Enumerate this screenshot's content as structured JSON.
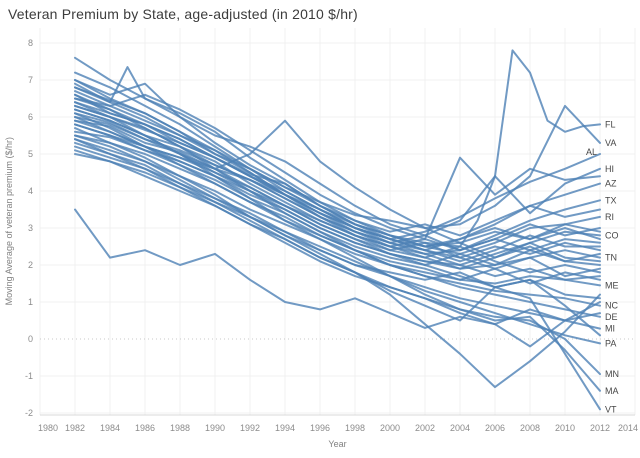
{
  "chart_data": {
    "type": "line",
    "title": "Veteran Premium by State, age-adjusted (in 2010 $/hr)",
    "xlabel": "Year",
    "ylabel": "Moving Average of veteran premium ($/hr)",
    "xlim": [
      1980,
      2014
    ],
    "ylim": [
      -2,
      8
    ],
    "x_ticks": [
      1980,
      1982,
      1984,
      1986,
      1988,
      1990,
      1992,
      1994,
      1996,
      1998,
      2000,
      2002,
      2004,
      2006,
      2008,
      2010,
      2012,
      2014
    ],
    "y_ticks": [
      8,
      7,
      6,
      5,
      4,
      3,
      2,
      1,
      0,
      -1,
      -2
    ],
    "grid": true,
    "zero_line_style": "dotted",
    "legend": "end-of-line state labels, right side",
    "line_opacity": 0.8,
    "colors": {
      "line": "#4d81b5",
      "grid": "#f0f0f0",
      "zero_line": "#c9c9c9",
      "axis_line": "#d9d9d9",
      "tick_label": "#8c8c8c",
      "state_label": "#474747",
      "title": "#3c3c3c",
      "axis_title": "#828282"
    },
    "x": [
      1982,
      1984,
      1986,
      1988,
      1990,
      1992,
      1994,
      1996,
      1998,
      2000,
      2002,
      2004,
      2006,
      2008,
      2010,
      2012
    ],
    "series": [
      {
        "label": "FL",
        "x": [
          1982,
          1984,
          1986,
          1988,
          1990,
          1992,
          1994,
          1996,
          1998,
          2000,
          2002,
          2004,
          2005,
          2006,
          2007,
          2008,
          2009,
          2010,
          2011,
          2012
        ],
        "y": [
          6.3,
          6.0,
          5.65,
          5.3,
          4.9,
          4.45,
          4.2,
          3.6,
          3.1,
          2.8,
          2.6,
          2.5,
          3.2,
          4.4,
          7.8,
          7.2,
          5.9,
          5.6,
          5.75,
          5.8
        ]
      },
      {
        "label": "VA",
        "y": [
          6.8,
          6.45,
          6.1,
          5.6,
          5.0,
          4.6,
          4.1,
          3.7,
          3.35,
          3.2,
          3.0,
          3.1,
          3.6,
          4.4,
          6.3,
          5.3
        ]
      },
      {
        "label": "AL",
        "label_offset": [
          -19,
          -2
        ],
        "y": [
          5.9,
          5.75,
          5.3,
          5.05,
          4.6,
          4.3,
          3.9,
          3.4,
          3.0,
          2.7,
          2.9,
          3.3,
          3.8,
          4.25,
          4.6,
          5.0
        ]
      },
      {
        "label": "HI",
        "y": [
          7.0,
          6.6,
          6.9,
          6.0,
          5.5,
          5.2,
          4.8,
          4.2,
          3.6,
          3.1,
          2.8,
          3.2,
          4.4,
          3.4,
          4.2,
          4.6
        ]
      },
      {
        "label": "AZ",
        "y": [
          6.2,
          5.9,
          5.5,
          5.2,
          4.7,
          4.3,
          3.8,
          3.3,
          2.9,
          2.6,
          2.4,
          2.7,
          3.1,
          3.6,
          3.9,
          4.2
        ]
      },
      {
        "label": "TX",
        "y": [
          5.6,
          5.45,
          5.1,
          4.8,
          4.4,
          4.0,
          3.6,
          3.2,
          2.8,
          2.5,
          2.3,
          2.4,
          2.8,
          3.2,
          3.5,
          3.75
        ]
      },
      {
        "label": "RI",
        "y": [
          6.5,
          6.2,
          5.8,
          5.4,
          4.9,
          4.4,
          3.9,
          3.5,
          3.1,
          2.8,
          2.5,
          2.3,
          2.6,
          3.0,
          3.1,
          3.3
        ]
      },
      {
        "label": "CO",
        "y": [
          5.8,
          5.5,
          5.2,
          4.8,
          4.4,
          3.9,
          3.5,
          3.0,
          2.6,
          2.3,
          2.1,
          2.0,
          2.3,
          2.6,
          2.9,
          2.8
        ]
      },
      {
        "label": "TN",
        "y": [
          6.1,
          5.85,
          5.4,
          5.0,
          4.5,
          4.0,
          3.5,
          3.0,
          2.6,
          2.3,
          2.1,
          1.9,
          2.0,
          2.2,
          2.4,
          2.2
        ]
      },
      {
        "label": "ME",
        "y": [
          5.4,
          5.1,
          4.8,
          4.4,
          4.0,
          3.5,
          3.1,
          2.7,
          2.3,
          2.0,
          1.8,
          1.6,
          1.5,
          1.7,
          1.6,
          1.45
        ]
      },
      {
        "label": "NC",
        "y": [
          6.0,
          5.6,
          5.2,
          4.7,
          4.2,
          3.7,
          3.2,
          2.8,
          2.4,
          2.0,
          1.7,
          1.5,
          1.3,
          1.2,
          1.1,
          0.9
        ]
      },
      {
        "label": "DE",
        "y": [
          6.6,
          6.2,
          5.7,
          5.2,
          4.6,
          4.0,
          3.4,
          2.9,
          2.4,
          2.0,
          1.7,
          1.4,
          1.2,
          1.0,
          0.8,
          0.6
        ]
      },
      {
        "label": "MI",
        "y": [
          5.2,
          4.9,
          4.6,
          4.2,
          3.8,
          3.3,
          2.9,
          2.4,
          2.0,
          1.7,
          1.4,
          1.1,
          0.9,
          0.7,
          0.5,
          0.28
        ]
      },
      {
        "label": "PA",
        "y": [
          5.5,
          5.2,
          4.8,
          4.3,
          3.8,
          3.4,
          2.9,
          2.5,
          2.1,
          1.7,
          1.3,
          1.0,
          0.7,
          0.4,
          0.1,
          -0.12
        ]
      },
      {
        "label": "MN",
        "y": [
          5.0,
          4.8,
          4.4,
          4.0,
          3.6,
          3.1,
          2.7,
          2.2,
          1.8,
          1.4,
          1.1,
          0.8,
          0.6,
          0.5,
          0.0,
          -0.95
        ]
      },
      {
        "label": "MA",
        "y": [
          6.4,
          6.0,
          5.5,
          5.0,
          4.4,
          3.8,
          3.2,
          2.7,
          2.2,
          1.7,
          1.2,
          0.8,
          0.5,
          0.6,
          -0.3,
          -1.4
        ]
      },
      {
        "label": "VT",
        "y": [
          5.3,
          5.0,
          4.7,
          4.2,
          3.7,
          3.2,
          2.7,
          2.2,
          1.8,
          1.3,
          0.9,
          0.5,
          1.4,
          1.1,
          -0.4,
          -1.9
        ]
      },
      {
        "label": "",
        "y": [
          7.6,
          7.0,
          6.5,
          6.0,
          5.3,
          4.7,
          4.2,
          3.6,
          3.1,
          2.7,
          2.4,
          2.2,
          2.5,
          2.3,
          2.6,
          2.4
        ]
      },
      {
        "label": "",
        "x": [
          1982,
          1984,
          1985,
          1986,
          1988,
          1990,
          1992,
          1994,
          1996,
          1998,
          2000,
          2002,
          2004,
          2006,
          2008,
          2010,
          2012
        ],
        "y": [
          6.9,
          6.4,
          7.35,
          6.5,
          6.1,
          5.6,
          4.9,
          4.3,
          3.7,
          3.2,
          2.8,
          2.5,
          2.6,
          2.2,
          2.5,
          2.1,
          2.3
        ]
      },
      {
        "label": "",
        "y": [
          6.1,
          5.7,
          5.2,
          4.9,
          4.6,
          5.0,
          5.9,
          4.8,
          4.1,
          3.5,
          3.0,
          2.6,
          2.9,
          2.7,
          3.0,
          2.7
        ]
      },
      {
        "label": "",
        "y": [
          5.7,
          5.3,
          4.9,
          4.4,
          3.9,
          3.3,
          2.8,
          2.3,
          1.8,
          1.2,
          0.4,
          -0.4,
          -1.3,
          -0.6,
          0.2,
          1.2
        ]
      },
      {
        "label": "",
        "y": [
          6.7,
          6.3,
          5.9,
          5.5,
          5.0,
          4.5,
          3.9,
          3.4,
          2.9,
          2.6,
          2.8,
          2.4,
          2.7,
          3.1,
          2.8,
          3.0
        ]
      },
      {
        "label": "",
        "y": [
          3.5,
          2.2,
          2.4,
          2.0,
          2.3,
          1.6,
          1.0,
          0.8,
          1.1,
          0.7,
          0.3,
          0.6,
          0.4,
          0.8,
          0.5,
          0.7
        ]
      },
      {
        "label": "",
        "y": [
          6.3,
          6.0,
          5.7,
          5.2,
          4.8,
          4.2,
          3.7,
          3.2,
          2.8,
          2.4,
          2.2,
          2.5,
          2.1,
          1.8,
          2.0,
          1.8
        ]
      },
      {
        "label": "",
        "y": [
          5.9,
          5.6,
          5.2,
          4.9,
          4.5,
          4.1,
          3.6,
          3.1,
          2.7,
          2.4,
          2.6,
          2.2,
          1.9,
          2.2,
          1.7,
          1.9
        ]
      },
      {
        "label": "",
        "y": [
          6.6,
          6.1,
          5.8,
          5.3,
          4.9,
          4.4,
          4.0,
          3.5,
          3.0,
          2.7,
          2.4,
          2.1,
          2.4,
          2.8,
          2.5,
          2.5
        ]
      },
      {
        "label": "",
        "y": [
          7.2,
          6.8,
          6.3,
          5.8,
          5.2,
          4.6,
          4.0,
          3.5,
          3.0,
          2.6,
          2.3,
          2.0,
          1.7,
          1.9,
          1.6,
          1.7
        ]
      },
      {
        "label": "",
        "y": [
          5.1,
          4.8,
          4.5,
          4.1,
          3.7,
          3.3,
          2.8,
          2.4,
          2.0,
          1.8,
          1.6,
          1.8,
          1.4,
          1.6,
          1.2,
          1.1
        ]
      },
      {
        "label": "",
        "y": [
          6.0,
          5.8,
          5.4,
          5.1,
          4.7,
          4.3,
          3.8,
          3.3,
          2.9,
          2.5,
          2.2,
          1.9,
          2.2,
          2.6,
          2.2,
          2.1
        ]
      },
      {
        "label": "",
        "y": [
          6.8,
          6.4,
          6.0,
          5.5,
          5.1,
          4.6,
          4.1,
          3.6,
          3.2,
          2.9,
          3.1,
          2.8,
          3.2,
          3.6,
          3.3,
          3.5
        ]
      },
      {
        "label": "",
        "y": [
          5.5,
          5.3,
          5.0,
          4.6,
          4.2,
          3.7,
          3.3,
          2.8,
          2.4,
          2.1,
          1.9,
          1.6,
          1.9,
          1.5,
          1.8,
          1.6
        ]
      },
      {
        "label": "",
        "y": [
          6.2,
          5.9,
          5.5,
          5.0,
          4.6,
          4.1,
          3.6,
          3.1,
          2.7,
          2.3,
          2.0,
          1.7,
          1.4,
          1.6,
          0.9,
          0.1
        ]
      },
      {
        "label": "",
        "y": [
          6.4,
          6.1,
          5.8,
          5.4,
          4.9,
          4.4,
          3.9,
          3.3,
          2.8,
          2.5,
          2.7,
          4.9,
          3.9,
          4.6,
          4.3,
          4.4
        ]
      },
      {
        "label": "",
        "y": [
          5.8,
          5.5,
          5.1,
          4.7,
          4.3,
          3.8,
          3.4,
          2.9,
          2.5,
          2.2,
          2.0,
          2.3,
          2.0,
          2.4,
          2.7,
          2.6
        ]
      },
      {
        "label": "",
        "y": [
          5.4,
          5.0,
          4.6,
          4.1,
          3.6,
          3.1,
          2.6,
          2.1,
          1.7,
          1.4,
          1.1,
          0.7,
          0.4,
          -0.2,
          0.5,
          1.0
        ]
      },
      {
        "label": "",
        "y": [
          7.0,
          6.5,
          6.1,
          5.6,
          5.1,
          4.5,
          3.9,
          3.4,
          3.0,
          2.7,
          2.5,
          2.7,
          3.0,
          2.7,
          3.1,
          2.9
        ]
      },
      {
        "label": "",
        "y": [
          6.5,
          6.3,
          6.6,
          6.2,
          5.7,
          5.1,
          4.5,
          3.9,
          3.4,
          3.0,
          2.7,
          2.4,
          2.7,
          2.4,
          2.1,
          2.0
        ]
      }
    ]
  }
}
